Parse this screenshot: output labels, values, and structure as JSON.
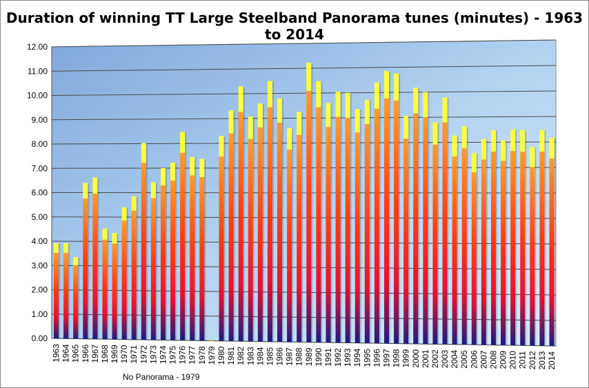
{
  "chart_data": {
    "type": "bar",
    "title": "Duration of winning TT Large Steelband Panorama tunes (minutes) - 1963 to 2014",
    "annotation": "No Panorama - 1979",
    "xlabel": "",
    "ylabel": "",
    "ylim": [
      0,
      12
    ],
    "yticks": [
      "0.00",
      "1.00",
      "2.00",
      "3.00",
      "4.00",
      "5.00",
      "6.00",
      "7.00",
      "8.00",
      "9.00",
      "10.00",
      "11.00",
      "12.00"
    ],
    "grid": true,
    "legend": "none",
    "colors": {
      "top": "#ffff40",
      "upper": "#ff9c2a",
      "mid": "#ff2020",
      "bottom": "#1a1a80",
      "plot_bg": "#bcd8f2"
    },
    "categories": [
      "1963",
      "1964",
      "1965",
      "1966",
      "1967",
      "1968",
      "1969",
      "1970",
      "1971",
      "1972",
      "1973",
      "1974",
      "1975",
      "1976",
      "1977",
      "1978",
      "1979",
      "1980",
      "1981",
      "1982",
      "1983",
      "1984",
      "1985",
      "1986",
      "1987",
      "1988",
      "1989",
      "1990",
      "1991",
      "1992",
      "1993",
      "1994",
      "1995",
      "1996",
      "1997",
      "1998",
      "1999",
      "2000",
      "2001",
      "2002",
      "2003",
      "2004",
      "2005",
      "2006",
      "2007",
      "2008",
      "2009",
      "2010",
      "2011",
      "2012",
      "2013",
      "2014"
    ],
    "values": [
      3.92,
      3.92,
      3.35,
      6.4,
      6.62,
      4.53,
      4.35,
      5.4,
      5.85,
      8.02,
      6.42,
      7.0,
      7.22,
      8.47,
      7.45,
      7.37,
      0,
      8.3,
      9.33,
      10.3,
      9.08,
      9.6,
      10.5,
      9.8,
      8.6,
      9.25,
      11.22,
      10.48,
      9.6,
      10.05,
      10.0,
      9.35,
      9.72,
      10.4,
      10.85,
      10.75,
      9.07,
      10.18,
      10.0,
      8.8,
      9.78,
      8.27,
      8.63,
      7.58,
      8.13,
      8.48,
      8.07,
      8.5,
      8.47,
      7.8,
      8.47,
      8.17
    ]
  }
}
